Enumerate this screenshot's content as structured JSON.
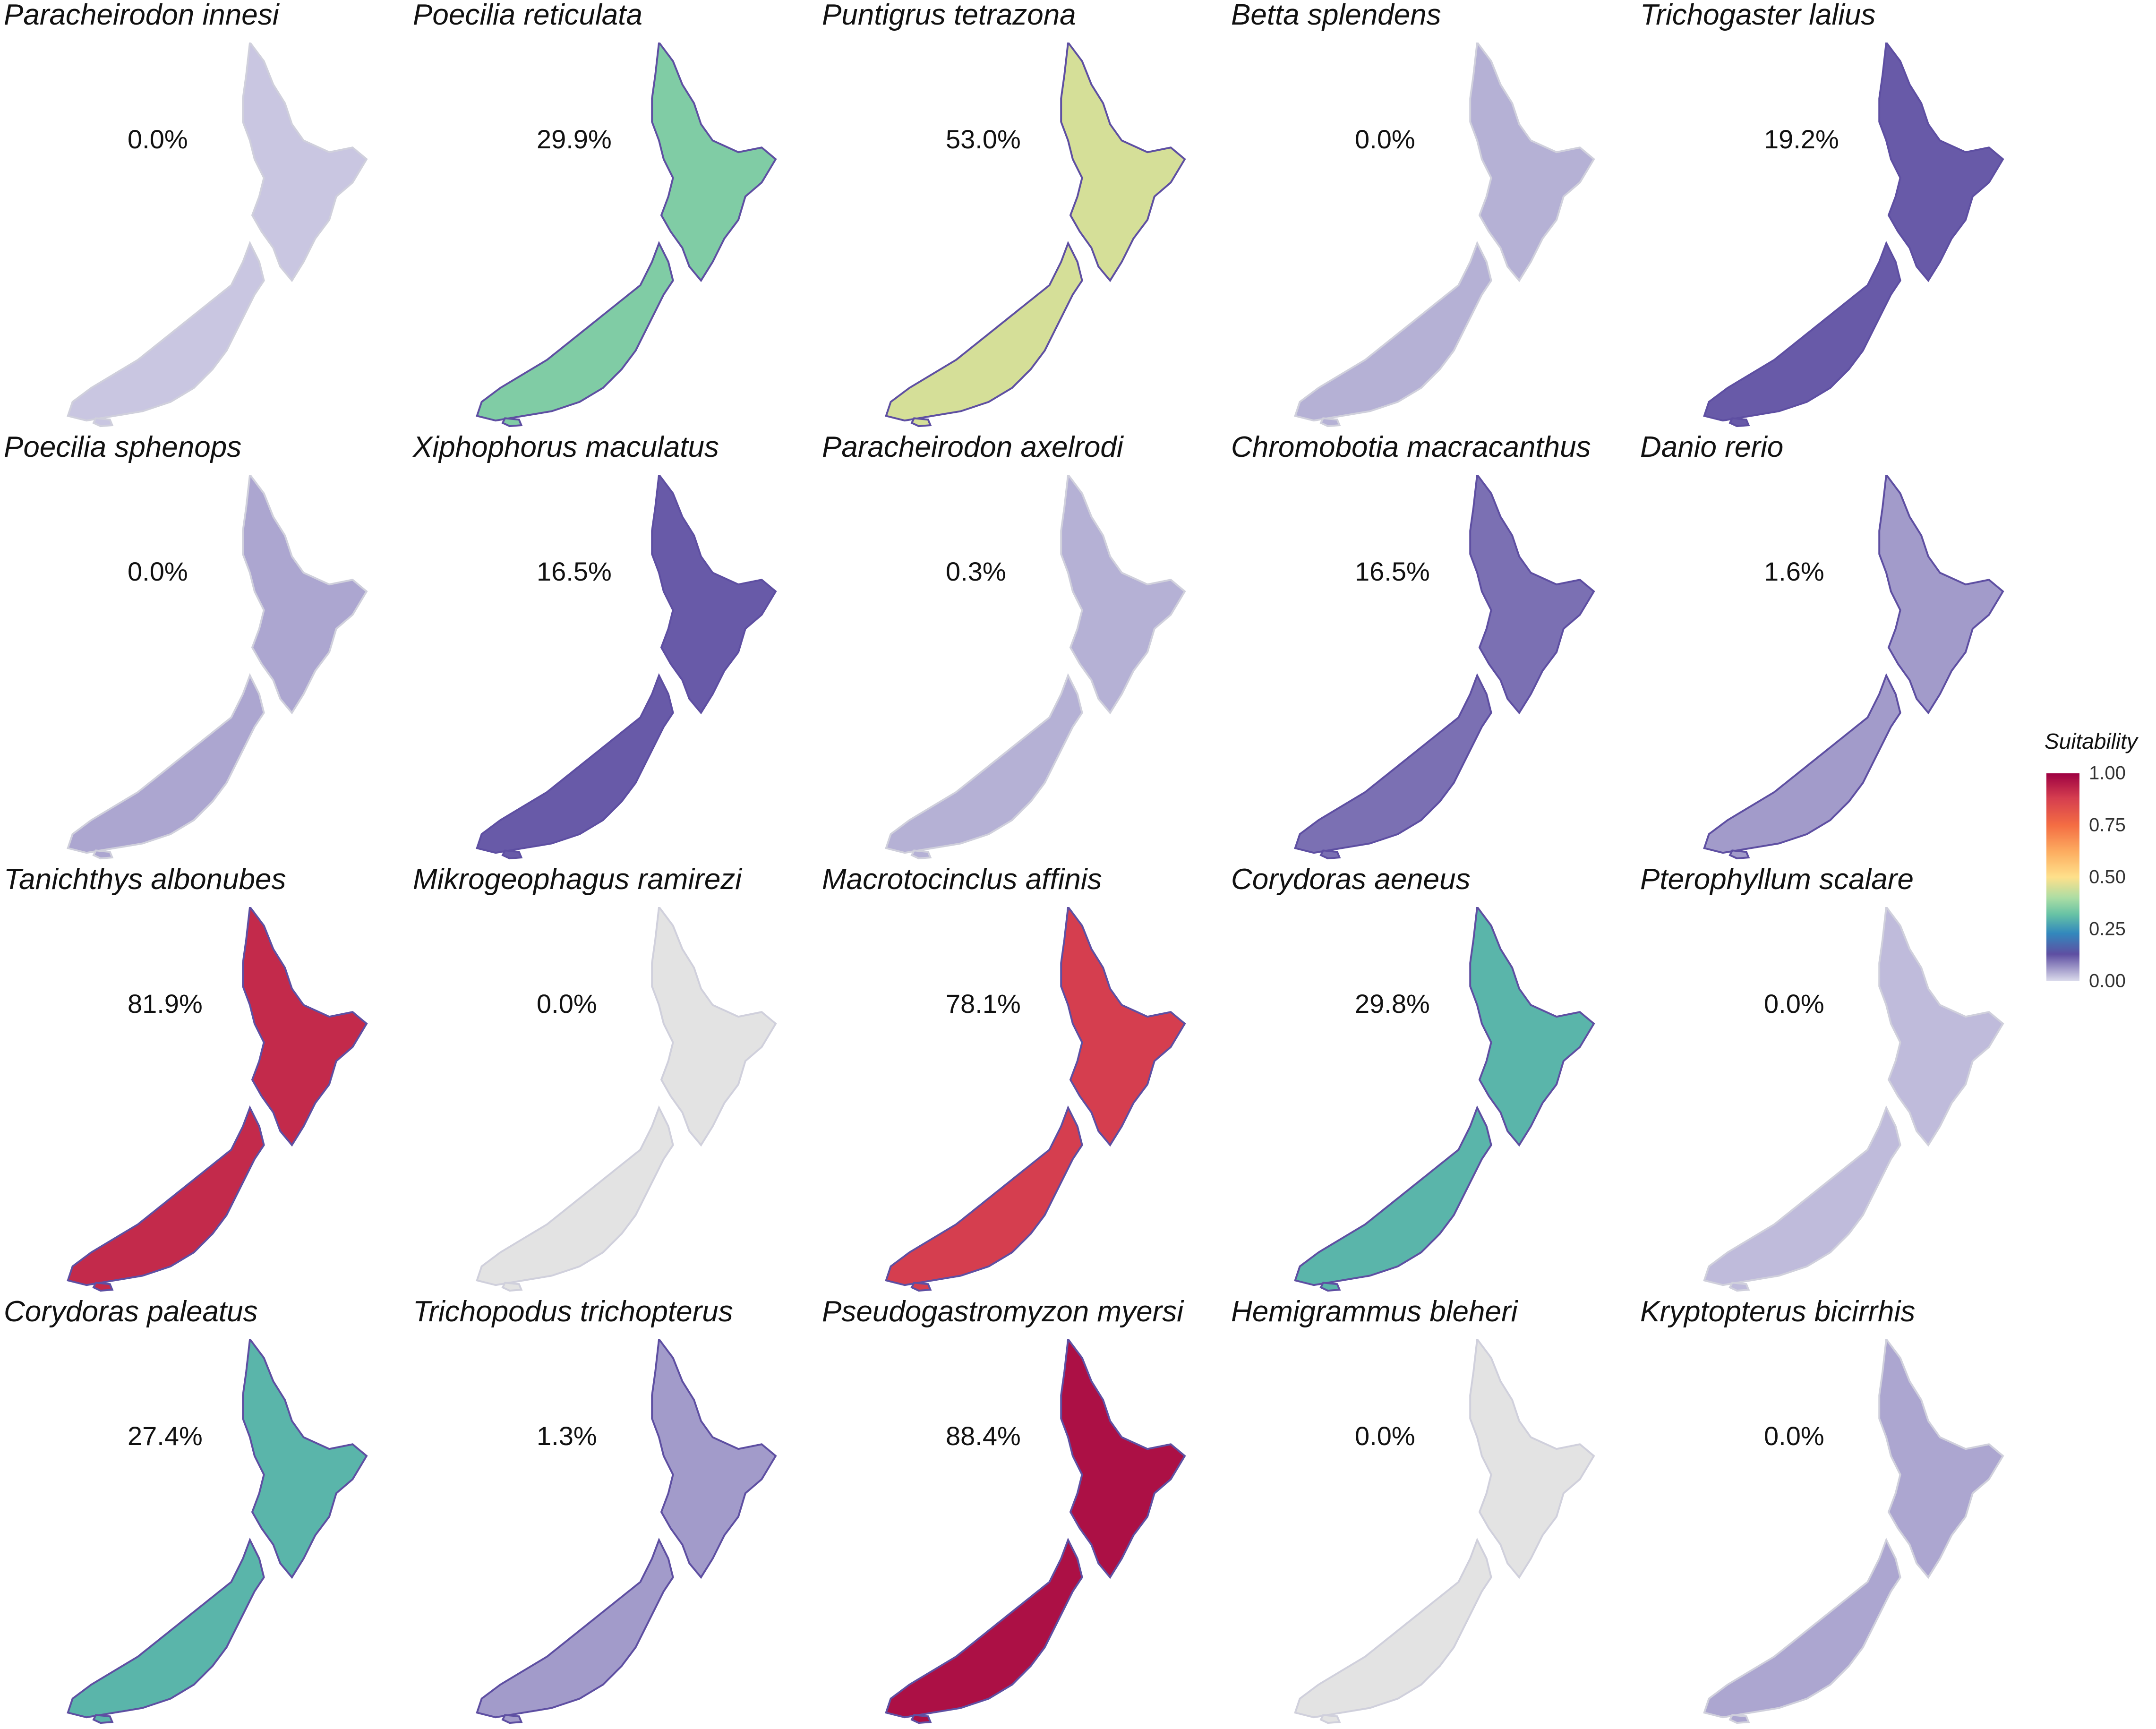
{
  "legend": {
    "title": "Suitability",
    "ticks": [
      "1.00",
      "0.75",
      "0.50",
      "0.25",
      "0.00"
    ],
    "tick_values": [
      1.0,
      0.75,
      0.5,
      0.25,
      0.0
    ],
    "colors": [
      "#9e0142",
      "#f46d43",
      "#fee08b",
      "#e6f598",
      "#66c2a5",
      "#3288bd",
      "#5e4fa2",
      "#dcdcec"
    ]
  },
  "panels": [
    {
      "species": "Paracheirodon innesi",
      "percent": "0.0%",
      "level": 0.02
    },
    {
      "species": "Poecilia reticulata",
      "percent": "29.9%",
      "level": 0.35
    },
    {
      "species": "Puntigrus tetrazona",
      "percent": "53.0%",
      "level": 0.45
    },
    {
      "species": "Betta splendens",
      "percent": "0.0%",
      "level": 0.04
    },
    {
      "species": "Trichogaster lalius",
      "percent": "19.2%",
      "level": 0.12
    },
    {
      "species": "Poecilia sphenops",
      "percent": "0.0%",
      "level": 0.05
    },
    {
      "species": "Xiphophorus maculatus",
      "percent": "16.5%",
      "level": 0.12
    },
    {
      "species": "Paracheirodon axelrodi",
      "percent": "0.3%",
      "level": 0.04
    },
    {
      "species": "Chromobotia macracanthus",
      "percent": "16.5%",
      "level": 0.1
    },
    {
      "species": "Danio rerio",
      "percent": "1.6%",
      "level": 0.06
    },
    {
      "species": "Tanichthys albonubes",
      "percent": "81.9%",
      "level": 0.92
    },
    {
      "species": "Mikrogeophagus ramirezi",
      "percent": "0.0%",
      "level": 0.0
    },
    {
      "species": "Macrotocinclus affinis",
      "percent": "78.1%",
      "level": 0.88
    },
    {
      "species": "Corydoras aeneus",
      "percent": "29.8%",
      "level": 0.3
    },
    {
      "species": "Pterophyllum scalare",
      "percent": "0.0%",
      "level": 0.03
    },
    {
      "species": "Corydoras paleatus",
      "percent": "27.4%",
      "level": 0.3
    },
    {
      "species": "Trichopodus trichopterus",
      "percent": "1.3%",
      "level": 0.06
    },
    {
      "species": "Pseudogastromyzon myersi",
      "percent": "88.4%",
      "level": 0.97
    },
    {
      "species": "Hemigrammus bleheri",
      "percent": "0.0%",
      "level": 0.0
    },
    {
      "species": "Kryptopterus bicirrhis",
      "percent": "0.0%",
      "level": 0.05
    }
  ]
}
